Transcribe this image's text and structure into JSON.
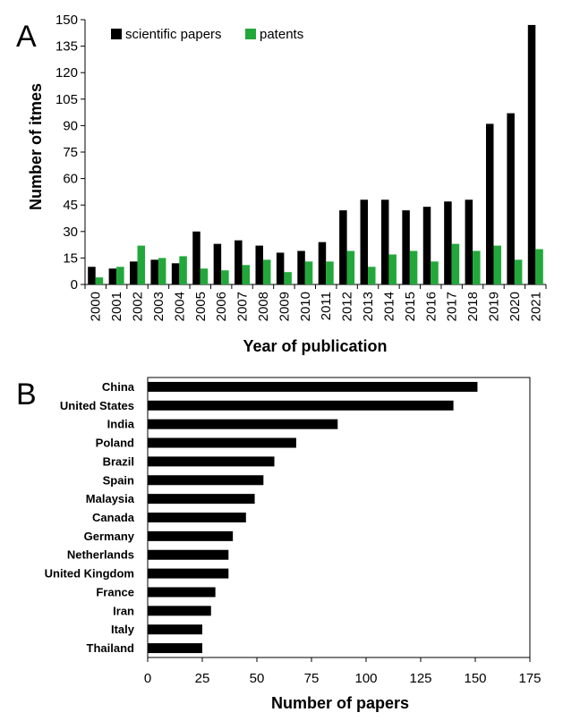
{
  "chart_data": [
    {
      "panel_label": "A",
      "type": "bar",
      "categories": [
        "2000",
        "2001",
        "2002",
        "2003",
        "2004",
        "2005",
        "2006",
        "2007",
        "2008",
        "2009",
        "2010",
        "2011",
        "2012",
        "2013",
        "2014",
        "2015",
        "2016",
        "2017",
        "2018",
        "2019",
        "2020",
        "2021"
      ],
      "series": [
        {
          "name": "scientific papers",
          "color": "#000000",
          "values": [
            10,
            9,
            13,
            14,
            12,
            30,
            23,
            25,
            22,
            18,
            19,
            24,
            42,
            48,
            48,
            42,
            44,
            47,
            48,
            91,
            97,
            147
          ]
        },
        {
          "name": "patents",
          "color": "#22a83a",
          "values": [
            4,
            10,
            22,
            15,
            16,
            9,
            8,
            11,
            14,
            7,
            13,
            13,
            19,
            10,
            17,
            19,
            13,
            23,
            19,
            22,
            14,
            20
          ]
        }
      ],
      "xlabel": "Year of publication",
      "ylabel": "Number of itmes",
      "ylim": [
        0,
        150
      ],
      "yticks": [
        "0",
        "15",
        "30",
        "45",
        "60",
        "75",
        "90",
        "105",
        "120",
        "135",
        "150"
      ],
      "legend": "top-left",
      "grid": false
    },
    {
      "panel_label": "B",
      "type": "bar",
      "orientation": "horizontal",
      "categories": [
        "China",
        "United States",
        "India",
        "Poland",
        "Brazil",
        "Spain",
        "Malaysia",
        "Canada",
        "Germany",
        "Netherlands",
        "United Kingdom",
        "France",
        "Iran",
        "Italy",
        "Thailand"
      ],
      "values": [
        151,
        140,
        87,
        68,
        58,
        53,
        49,
        45,
        39,
        37,
        37,
        31,
        29,
        25,
        25
      ],
      "bar_color": "#000000",
      "xlabel": "Number of papers",
      "xlim": [
        0,
        175
      ],
      "xticks": [
        "0",
        "25",
        "50",
        "75",
        "100",
        "125",
        "150",
        "175"
      ],
      "grid": false
    }
  ]
}
